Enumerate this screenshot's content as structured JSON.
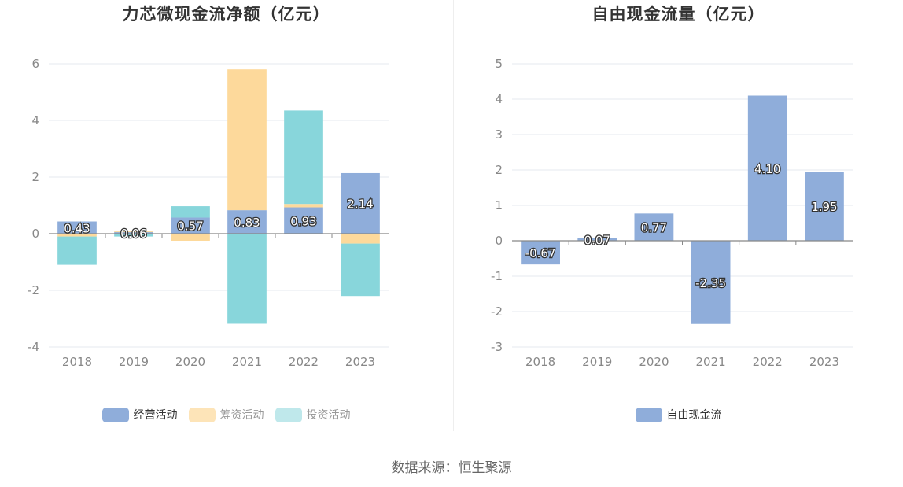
{
  "colors": {
    "operating": "#8fadda",
    "financing": "#fdd99b",
    "investing": "#88d6db",
    "free": "#8fadda",
    "grid": "#e6e8ef",
    "axis": "#888888"
  },
  "source": "数据来源：恒生聚源",
  "chart_data": [
    {
      "type": "bar",
      "stacked": true,
      "title": "力芯微现金流净额（亿元）",
      "categories": [
        "2018",
        "2019",
        "2020",
        "2021",
        "2022",
        "2023"
      ],
      "ylim": [
        -4,
        6
      ],
      "yticks": [
        -4,
        -2,
        0,
        2,
        4,
        6
      ],
      "grid": true,
      "legend_position": "bottom-center",
      "series": [
        {
          "name": "经营活动",
          "values": [
            0.43,
            0.06,
            0.57,
            0.83,
            0.93,
            2.14
          ],
          "labels": [
            "0.43",
            "0.06",
            "0.57",
            "0.83",
            "0.93",
            "2.14"
          ]
        },
        {
          "name": "筹资活动",
          "values": [
            -0.1,
            0.02,
            -0.25,
            4.97,
            0.12,
            -0.35
          ]
        },
        {
          "name": "投资活动",
          "values": [
            -1.0,
            -0.1,
            0.4,
            -3.18,
            3.3,
            -1.85
          ]
        }
      ]
    },
    {
      "type": "bar",
      "title": "自由现金流量（亿元）",
      "categories": [
        "2018",
        "2019",
        "2020",
        "2021",
        "2022",
        "2023"
      ],
      "ylim": [
        -3,
        5
      ],
      "yticks": [
        -3,
        -2,
        -1,
        0,
        1,
        2,
        3,
        4,
        5
      ],
      "grid": true,
      "legend_position": "bottom-center",
      "series": [
        {
          "name": "自由现金流",
          "values": [
            -0.67,
            0.07,
            0.77,
            -2.35,
            4.1,
            1.95
          ],
          "labels": [
            "-0.67",
            "0.07",
            "0.77",
            "-2.35",
            "4.10",
            "1.95"
          ]
        }
      ]
    }
  ]
}
